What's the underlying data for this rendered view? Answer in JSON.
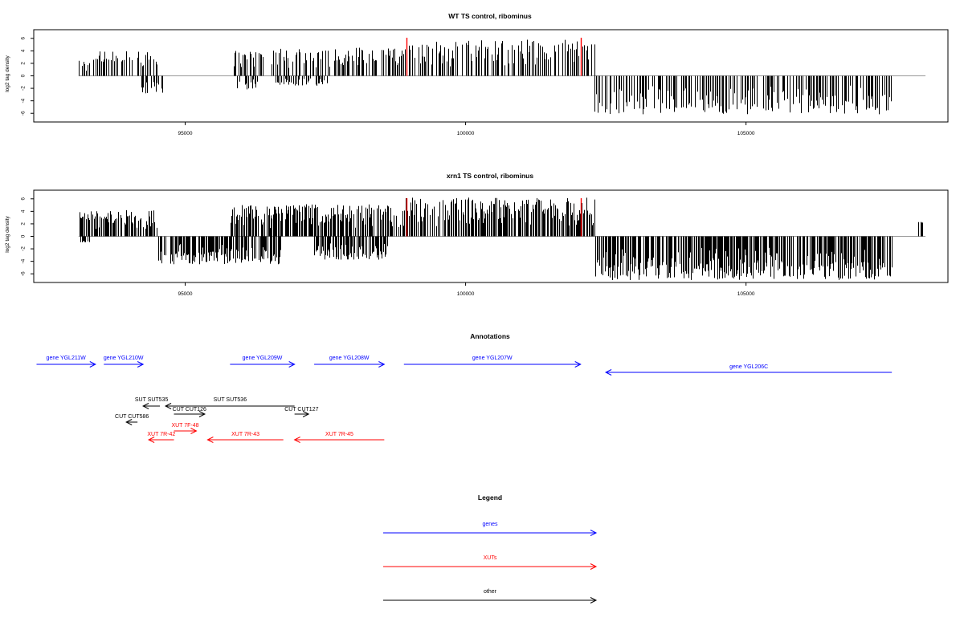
{
  "chart_data": [
    {
      "type": "bar",
      "title": "WT TS control, ribominus",
      "ylabel": "log2 tag density",
      "ylim": [
        -7,
        7
      ],
      "yticks": [
        -6,
        -4,
        -2,
        0,
        2,
        4,
        6
      ],
      "xlim": [
        92300,
        108600
      ],
      "xticks": [
        95000,
        100000,
        105000
      ],
      "xtick_labels": [
        "95000",
        "100000",
        "105000"
      ],
      "bar_color": "#000000",
      "highlight_color": "#ff0000",
      "segments": [
        {
          "range": [
            93100,
            93400
          ],
          "sign": 1,
          "max": 3.0
        },
        {
          "range": [
            93400,
            94500
          ],
          "sign": 1,
          "max": 4.0
        },
        {
          "range": [
            94200,
            94600
          ],
          "sign": -1,
          "max": 3.0
        },
        {
          "range": [
            95800,
            96400
          ],
          "sign": 1,
          "max": 4.0
        },
        {
          "range": [
            95900,
            96300
          ],
          "sign": -1,
          "max": 2.2
        },
        {
          "range": [
            96400,
            98900
          ],
          "sign": 1,
          "max": 4.5
        },
        {
          "range": [
            96600,
            97600
          ],
          "sign": -1,
          "max": 1.6
        },
        {
          "range": [
            98900,
            102300
          ],
          "sign": 1,
          "max": 5.8
        },
        {
          "range": [
            102300,
            107600
          ],
          "sign": -1,
          "max": 6.2
        }
      ],
      "highlights": [
        {
          "x": 98950,
          "value": 6.1
        },
        {
          "x": 102050,
          "value": 6.1
        }
      ]
    },
    {
      "type": "bar",
      "title": "xrn1 TS control, ribominus",
      "ylabel": "log2 tag density",
      "ylim": [
        -7,
        7
      ],
      "yticks": [
        -6,
        -4,
        -2,
        0,
        2,
        4,
        6
      ],
      "xlim": [
        92300,
        108600
      ],
      "xticks": [
        95000,
        100000,
        105000
      ],
      "xtick_labels": [
        "95000",
        "100000",
        "105000"
      ],
      "bar_color": "#000000",
      "highlight_color": "#ff0000",
      "segments": [
        {
          "range": [
            93100,
            94500
          ],
          "sign": 1,
          "max": 4.2
        },
        {
          "range": [
            93100,
            93300
          ],
          "sign": -1,
          "max": 1.0
        },
        {
          "range": [
            94500,
            96700
          ],
          "sign": -1,
          "max": 4.5
        },
        {
          "range": [
            95800,
            97000
          ],
          "sign": 1,
          "max": 5.0
        },
        {
          "range": [
            97000,
            98900
          ],
          "sign": 1,
          "max": 5.2
        },
        {
          "range": [
            97300,
            98600
          ],
          "sign": -1,
          "max": 3.8
        },
        {
          "range": [
            98900,
            102300
          ],
          "sign": 1,
          "max": 6.2
        },
        {
          "range": [
            102300,
            107600
          ],
          "sign": -1,
          "max": 7.0
        },
        {
          "range": [
            108050,
            108150
          ],
          "sign": 1,
          "max": 2.3
        }
      ],
      "highlights": [
        {
          "x": 98950,
          "value": 6.1
        },
        {
          "x": 102050,
          "value": 6.1
        }
      ]
    }
  ],
  "annotations": {
    "title": "Annotations",
    "colors": {
      "genes": "#0000ff",
      "XUTs": "#ff0000",
      "other": "#000000"
    },
    "features": [
      {
        "label": "gene YGL211W",
        "start": 92350,
        "end": 93400,
        "dir": "+",
        "cls": "genes",
        "row": 0
      },
      {
        "label": "gene YGL210W",
        "start": 93550,
        "end": 94250,
        "dir": "+",
        "cls": "genes",
        "row": 0
      },
      {
        "label": "gene YGL209W",
        "start": 95800,
        "end": 96950,
        "dir": "+",
        "cls": "genes",
        "row": 0
      },
      {
        "label": "gene YGL208W",
        "start": 97300,
        "end": 98550,
        "dir": "+",
        "cls": "genes",
        "row": 0
      },
      {
        "label": "gene YGL207W",
        "start": 98900,
        "end": 102050,
        "dir": "+",
        "cls": "genes",
        "row": 0
      },
      {
        "label": "gene YGL206C",
        "start": 102500,
        "end": 107600,
        "dir": "-",
        "cls": "genes",
        "row": 1
      },
      {
        "label": "SUT SUT535",
        "start": 94250,
        "end": 94550,
        "dir": "-",
        "cls": "other",
        "row": 2
      },
      {
        "label": "SUT SUT536",
        "start": 94650,
        "end": 96950,
        "dir": "-",
        "cls": "other",
        "row": 2
      },
      {
        "label": "CUT CUT126",
        "start": 94800,
        "end": 95350,
        "dir": "+",
        "cls": "other",
        "row": 3
      },
      {
        "label": "CUT CUT127",
        "start": 96950,
        "end": 97200,
        "dir": "+",
        "cls": "other",
        "row": 3
      },
      {
        "label": "CUT CUT586",
        "start": 93950,
        "end": 94150,
        "dir": "-",
        "cls": "other",
        "row": 4
      },
      {
        "label": "XUT 7F-48",
        "start": 94800,
        "end": 95200,
        "dir": "+",
        "cls": "XUTs",
        "row": 5
      },
      {
        "label": "XUT 7R-42",
        "start": 94350,
        "end": 94800,
        "dir": "-",
        "cls": "XUTs",
        "row": 6
      },
      {
        "label": "XUT 7R-43",
        "start": 95400,
        "end": 96750,
        "dir": "-",
        "cls": "XUTs",
        "row": 6
      },
      {
        "label": "XUT 7R-45",
        "start": 96950,
        "end": 98550,
        "dir": "-",
        "cls": "XUTs",
        "row": 6
      }
    ]
  },
  "legend": {
    "title": "Legend",
    "items": [
      {
        "label": "genes",
        "color": "#0000ff"
      },
      {
        "label": "XUTs",
        "color": "#ff0000"
      },
      {
        "label": "other",
        "color": "#000000"
      }
    ]
  }
}
